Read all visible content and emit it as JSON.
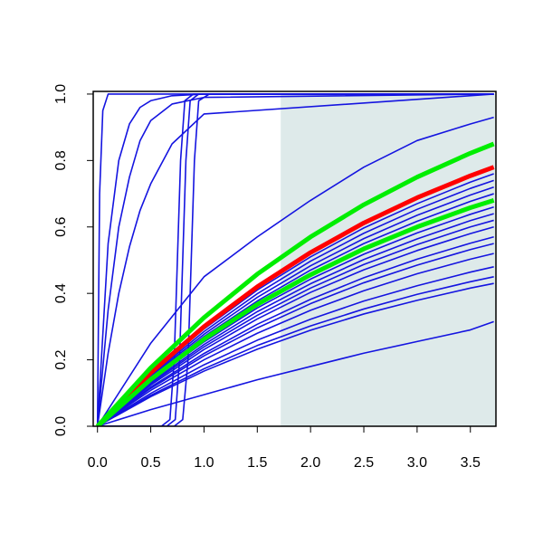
{
  "chart_data": {
    "type": "line",
    "xlim": [
      -0.04,
      3.74
    ],
    "ylim": [
      0,
      1.008
    ],
    "xticks": [
      {
        "value": 0,
        "label": "0.0"
      },
      0.5,
      {
        "value": 1,
        "label": "1.0"
      },
      1.5,
      {
        "value": 2,
        "label": "2.0"
      },
      2.5,
      {
        "value": 3,
        "label": "3.0"
      },
      3.5
    ],
    "yticks": [
      {
        "value": 0,
        "label": "0.0"
      },
      0.2,
      0.4,
      0.6,
      0.8,
      {
        "value": 1,
        "label": "1.0"
      }
    ],
    "shade": {
      "xlim": [
        1.72,
        3.74
      ],
      "ylim": [
        0,
        1
      ],
      "color": "#deeaea"
    },
    "series": [
      {
        "color": "#1414e0",
        "x": [
          0,
          0.02,
          0.05,
          0.1,
          3.72
        ],
        "values": [
          0,
          0.7,
          0.95,
          1,
          1
        ]
      },
      {
        "color": "#1414e0",
        "x": [
          0,
          0.1,
          0.2,
          0.3,
          0.4,
          0.5,
          0.7,
          1,
          3.72
        ],
        "values": [
          0,
          0.55,
          0.8,
          0.91,
          0.96,
          0.98,
          0.995,
          1,
          1
        ]
      },
      {
        "color": "#1414e0",
        "x": [
          0,
          0.1,
          0.2,
          0.3,
          0.4,
          0.5,
          0.7,
          1,
          3.72
        ],
        "values": [
          0,
          0.35,
          0.6,
          0.75,
          0.86,
          0.92,
          0.97,
          0.99,
          1
        ]
      },
      {
        "color": "#1414e0",
        "x": [
          0,
          0.1,
          0.2,
          0.3,
          0.4,
          0.5,
          0.7,
          1,
          3.72
        ],
        "values": [
          0,
          0.22,
          0.4,
          0.54,
          0.65,
          0.73,
          0.85,
          0.94,
          1
        ]
      },
      {
        "color": "#1414e0",
        "x": [
          0,
          0.6,
          0.68,
          0.72,
          0.75,
          0.78,
          0.82,
          0.9,
          3.72
        ],
        "values": [
          0,
          0,
          0.02,
          0.2,
          0.5,
          0.8,
          0.98,
          1,
          1
        ]
      },
      {
        "color": "#1414e0",
        "x": [
          0,
          0.65,
          0.73,
          0.77,
          0.8,
          0.83,
          0.87,
          0.95,
          3.72
        ],
        "values": [
          0,
          0,
          0.02,
          0.2,
          0.5,
          0.8,
          0.98,
          1,
          1
        ]
      },
      {
        "color": "#1414e0",
        "x": [
          0,
          0.72,
          0.8,
          0.85,
          0.88,
          0.91,
          0.95,
          1.05,
          3.72
        ],
        "values": [
          0,
          0,
          0.02,
          0.2,
          0.5,
          0.8,
          0.98,
          1,
          1
        ]
      },
      {
        "color": "#1414e0",
        "x": [
          0,
          0.5,
          1,
          1.5,
          2,
          2.5,
          3,
          3.5,
          3.72
        ],
        "values": [
          0,
          0.25,
          0.45,
          0.57,
          0.68,
          0.78,
          0.86,
          0.91,
          0.93
        ]
      },
      {
        "color": "#1414e0",
        "x": [
          0,
          0.5,
          1,
          1.5,
          2,
          2.5,
          3,
          3.5,
          3.72
        ],
        "values": [
          0,
          0.157,
          0.293,
          0.41,
          0.51,
          0.597,
          0.67,
          0.735,
          0.76
        ]
      },
      {
        "color": "#1414e0",
        "x": [
          0,
          0.5,
          1,
          1.5,
          2,
          2.5,
          3,
          3.5,
          3.72
        ],
        "values": [
          0,
          0.153,
          0.285,
          0.399,
          0.497,
          0.581,
          0.653,
          0.716,
          0.74
        ]
      },
      {
        "color": "#1414e0",
        "x": [
          0,
          0.5,
          1,
          1.5,
          2,
          2.5,
          3,
          3.5,
          3.72
        ],
        "values": [
          0,
          0.149,
          0.277,
          0.388,
          0.483,
          0.565,
          0.635,
          0.696,
          0.72
        ]
      },
      {
        "color": "#1414e0",
        "x": [
          0,
          0.5,
          1,
          1.5,
          2,
          2.5,
          3,
          3.5,
          3.72
        ],
        "values": [
          0,
          0.145,
          0.27,
          0.377,
          0.47,
          0.55,
          0.617,
          0.677,
          0.7
        ]
      },
      {
        "color": "#1414e0",
        "x": [
          0,
          0.5,
          1,
          1.5,
          2,
          2.5,
          3,
          3.5,
          3.72
        ],
        "values": [
          0,
          0.137,
          0.254,
          0.356,
          0.443,
          0.518,
          0.582,
          0.638,
          0.66
        ]
      },
      {
        "color": "#1414e0",
        "x": [
          0,
          0.5,
          1,
          1.5,
          2,
          2.5,
          3,
          3.5,
          3.72
        ],
        "values": [
          0,
          0.132,
          0.246,
          0.345,
          0.429,
          0.502,
          0.564,
          0.619,
          0.64
        ]
      },
      {
        "color": "#1414e0",
        "x": [
          0,
          0.5,
          1,
          1.5,
          2,
          2.5,
          3,
          3.5,
          3.72
        ],
        "values": [
          0,
          0.128,
          0.239,
          0.334,
          0.416,
          0.487,
          0.547,
          0.6,
          0.62
        ]
      },
      {
        "color": "#1414e0",
        "x": [
          0,
          0.5,
          1,
          1.5,
          2,
          2.5,
          3,
          3.5,
          3.72
        ],
        "values": [
          0,
          0.124,
          0.231,
          0.323,
          0.403,
          0.471,
          0.529,
          0.58,
          0.6
        ]
      },
      {
        "color": "#1414e0",
        "x": [
          0,
          0.5,
          1,
          1.5,
          2,
          2.5,
          3,
          3.5,
          3.72
        ],
        "values": [
          0,
          0.118,
          0.219,
          0.307,
          0.382,
          0.447,
          0.503,
          0.551,
          0.57
        ]
      },
      {
        "color": "#1414e0",
        "x": [
          0,
          0.5,
          1,
          1.5,
          2,
          2.5,
          3,
          3.5,
          3.72
        ],
        "values": [
          0,
          0.114,
          0.212,
          0.296,
          0.369,
          0.432,
          0.485,
          0.532,
          0.55
        ]
      },
      {
        "color": "#1414e0",
        "x": [
          0,
          0.5,
          1,
          1.5,
          2,
          2.5,
          3,
          3.5,
          3.72
        ],
        "values": [
          0,
          0.108,
          0.2,
          0.28,
          0.349,
          0.408,
          0.459,
          0.503,
          0.52
        ]
      },
      {
        "color": "#1414e0",
        "x": [
          0,
          0.5,
          1,
          1.5,
          2,
          2.5,
          3,
          3.5,
          3.72
        ],
        "values": [
          0,
          0.099,
          0.185,
          0.259,
          0.322,
          0.377,
          0.423,
          0.464,
          0.48
        ]
      },
      {
        "color": "#1414e0",
        "x": [
          0,
          0.5,
          1,
          1.5,
          2,
          2.5,
          3,
          3.5,
          3.72
        ],
        "values": [
          0,
          0.093,
          0.173,
          0.243,
          0.302,
          0.353,
          0.397,
          0.435,
          0.45
        ]
      },
      {
        "color": "#1414e0",
        "x": [
          0,
          0.5,
          1,
          1.5,
          2,
          2.5,
          3,
          3.5,
          3.72
        ],
        "values": [
          0,
          0.089,
          0.166,
          0.232,
          0.289,
          0.338,
          0.379,
          0.416,
          0.43
        ]
      },
      {
        "color": "#1414e0",
        "x": [
          0,
          0.5,
          1,
          1.5,
          2,
          2.5,
          3,
          3.5,
          3.72
        ],
        "values": [
          0,
          0.05,
          0.095,
          0.14,
          0.18,
          0.22,
          0.255,
          0.29,
          0.315
        ]
      },
      {
        "color": "#ff0000",
        "x": [
          0,
          0.5,
          1,
          1.5,
          2,
          2.5,
          3,
          3.5,
          3.72
        ],
        "values": [
          0,
          0.161,
          0.3,
          0.42,
          0.523,
          0.612,
          0.688,
          0.754,
          0.78
        ]
      },
      {
        "color": "#00ee00",
        "x": [
          0,
          0.5,
          1,
          1.5,
          2,
          2.5,
          3,
          3.5,
          3.72
        ],
        "values": [
          0,
          0.176,
          0.327,
          0.458,
          0.57,
          0.667,
          0.75,
          0.822,
          0.85
        ]
      },
      {
        "color": "#00ee00",
        "x": [
          0,
          0.5,
          1,
          1.5,
          2,
          2.5,
          3,
          3.5,
          3.72
        ],
        "values": [
          0,
          0.141,
          0.262,
          0.367,
          0.456,
          0.534,
          0.6,
          0.658,
          0.68
        ]
      }
    ]
  }
}
